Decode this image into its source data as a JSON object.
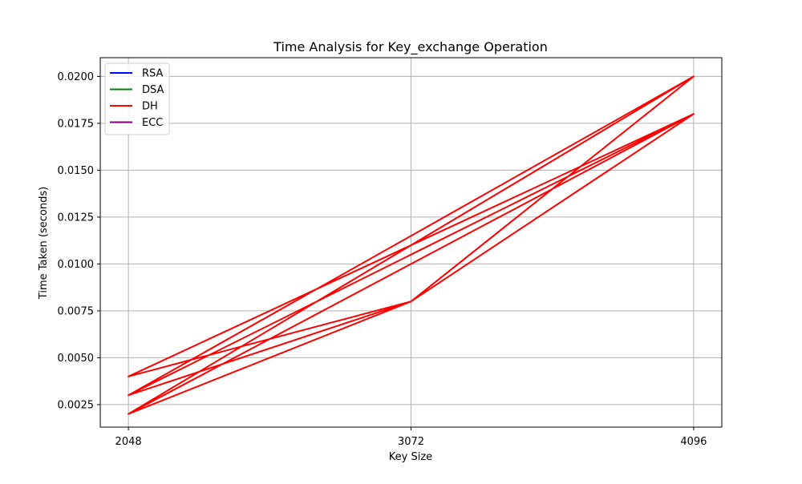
{
  "chart_data": {
    "type": "line",
    "title": "Time Analysis for Key_exchange Operation",
    "xlabel": "Key Size",
    "ylabel": "Time Taken (seconds)",
    "x_ticks": [
      "2048",
      "3072",
      "4096"
    ],
    "x_tick_values": [
      2048,
      3072,
      4096
    ],
    "y_ticks": [
      "0.0025",
      "0.0050",
      "0.0075",
      "0.0100",
      "0.0125",
      "0.0150",
      "0.0175",
      "0.0200"
    ],
    "y_tick_values": [
      0.0025,
      0.005,
      0.0075,
      0.01,
      0.0125,
      0.015,
      0.0175,
      0.02
    ],
    "xlim": [
      1946,
      4198
    ],
    "ylim": [
      0.0013,
      0.021
    ],
    "grid": true,
    "legend_position": "top-left",
    "legend": [
      {
        "name": "RSA",
        "color": "#0000ff"
      },
      {
        "name": "DSA",
        "color": "#008000"
      },
      {
        "name": "DH",
        "color": "#ff0000"
      },
      {
        "name": "ECC",
        "color": "#800080"
      }
    ],
    "series": [
      {
        "name": "DH",
        "color": "#ff0000",
        "x": [
          2048,
          3072,
          4096,
          2048,
          3072,
          4096,
          2048,
          3072,
          4096,
          2048,
          3072,
          4096,
          2048,
          3072,
          4096,
          2048,
          3072,
          4096,
          2048
        ],
        "y": [
          0.003,
          0.008,
          0.02,
          0.002,
          0.008,
          0.02,
          0.003,
          0.008,
          0.02,
          0.003,
          0.0105,
          0.018,
          0.002,
          0.008,
          0.018,
          0.004,
          0.008,
          0.02,
          0.003
        ]
      }
    ]
  }
}
